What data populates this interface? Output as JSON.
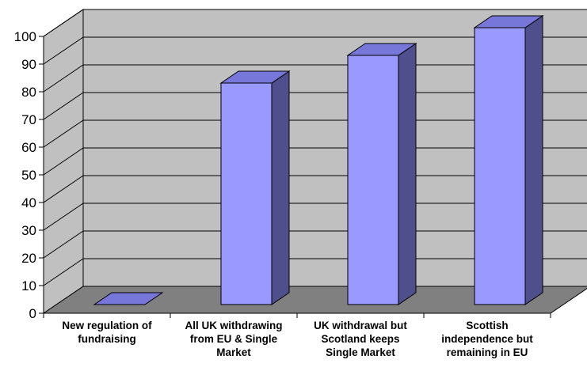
{
  "chart_data": {
    "type": "bar",
    "style": "3d-column",
    "title": "",
    "xlabel": "",
    "ylabel": "",
    "categories": [
      [
        "New regulation of",
        "fundraising"
      ],
      [
        "All UK withdrawing",
        "from EU & Single",
        "Market"
      ],
      [
        "UK withdrawal but",
        "Scotland keeps",
        "Single Market"
      ],
      [
        "Scottish",
        "independence but",
        "remaining in EU"
      ]
    ],
    "values": [
      0,
      80,
      90,
      100
    ],
    "ylim": [
      0,
      100
    ],
    "yticks": [
      0,
      10,
      20,
      30,
      40,
      50,
      60,
      70,
      80,
      90,
      100
    ],
    "grid": true,
    "legend": "none",
    "colors": {
      "bar_front": "#9999FF",
      "bar_side": "#4F4F8E",
      "bar_top": "#7777D9",
      "wall": "#C0C0C0",
      "floor": "#808080",
      "grid": "#000000"
    }
  }
}
